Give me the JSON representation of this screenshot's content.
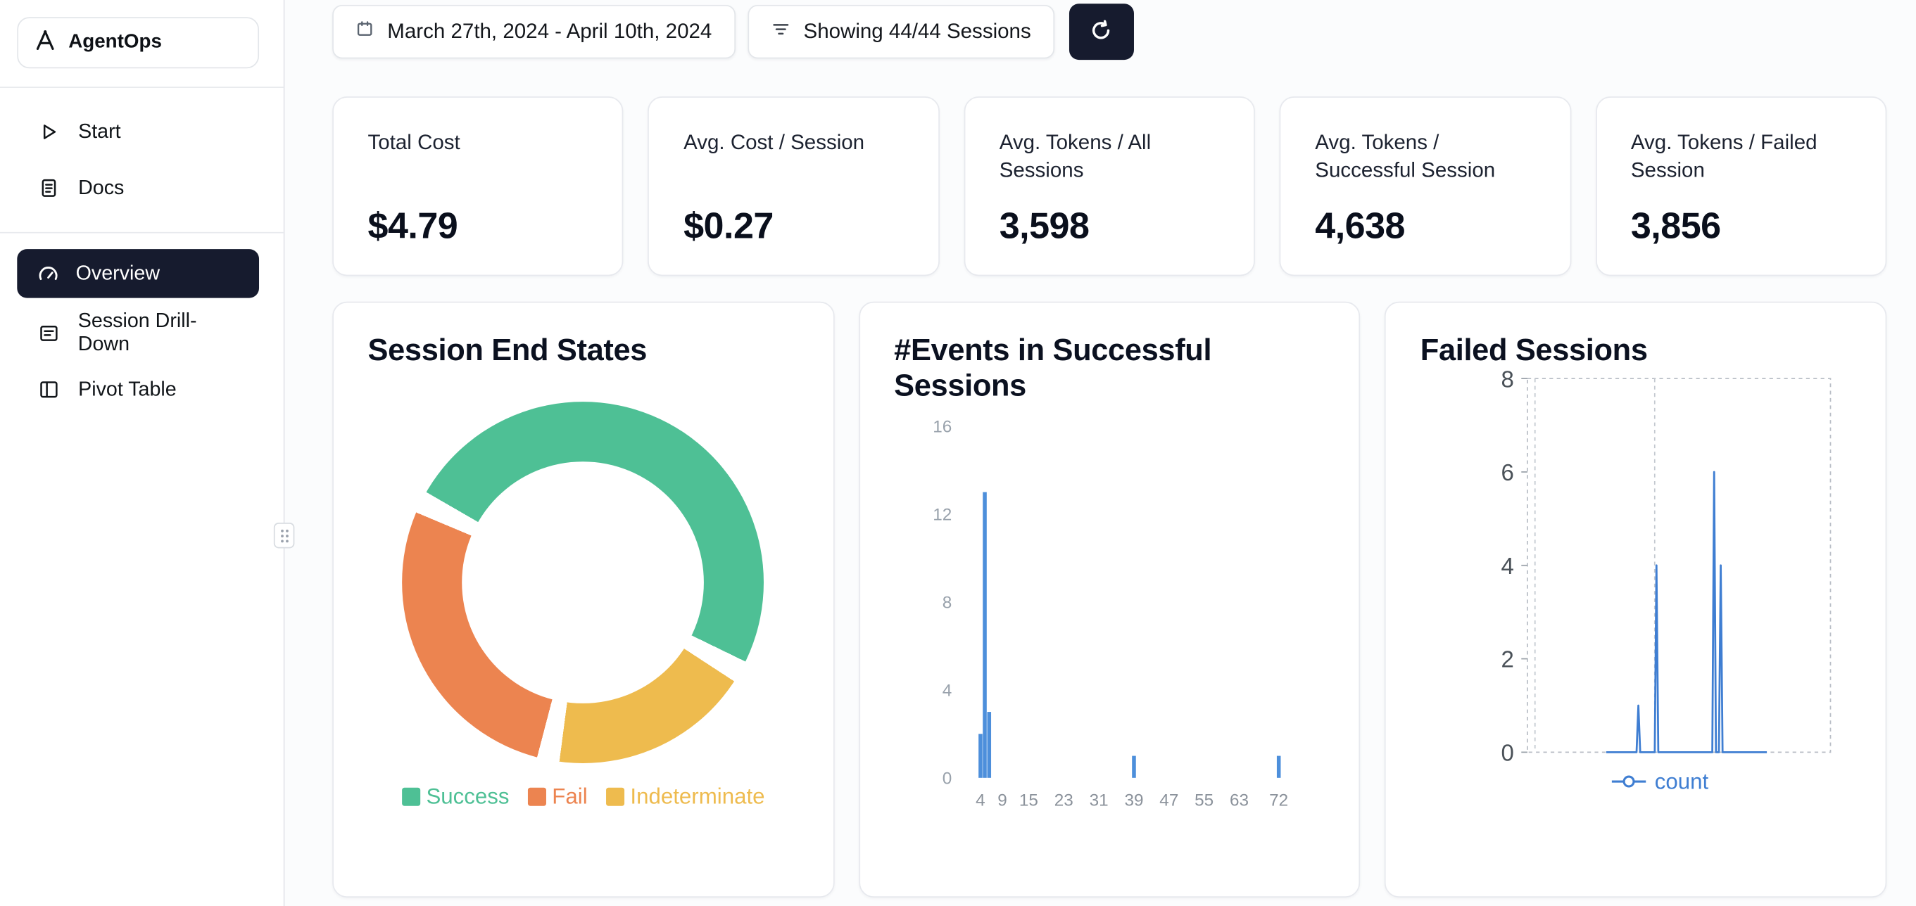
{
  "sidebar": {
    "logo_text": "AgentOps",
    "items": [
      {
        "label": "Start"
      },
      {
        "label": "Docs"
      },
      {
        "label": "Overview",
        "active": true
      },
      {
        "label": "Session Drill-Down"
      },
      {
        "label": "Pivot Table"
      }
    ]
  },
  "topbar": {
    "date_range_label": "March 27th, 2024 - April 10th, 2024",
    "filter_label": "Showing 44/44 Sessions"
  },
  "stats": [
    {
      "label": "Total Cost",
      "value": "$4.79"
    },
    {
      "label": "Avg. Cost / Session",
      "value": "$0.27"
    },
    {
      "label": "Avg. Tokens / All Sessions",
      "value": "3,598"
    },
    {
      "label": "Avg. Tokens / Successful Session",
      "value": "4,638"
    },
    {
      "label": "Avg. Tokens / Failed Session",
      "value": "3,856"
    }
  ],
  "colors": {
    "navy": "#161b2e",
    "success": "#4ec095",
    "fail": "#ec8450",
    "indeterminate": "#eebb4e",
    "bar_blue": "#4d8fdb",
    "line_blue": "#3f7ed2",
    "axis_gray": "#98a1ab",
    "axis_dark_gray": "#4a5158"
  },
  "chart_data": [
    {
      "type": "pie",
      "title": "Session End States",
      "labels": [
        "Success",
        "Fail",
        "Indeterminate"
      ],
      "values_pct": [
        52,
        29,
        19
      ],
      "colors": [
        "#4ec095",
        "#ec8450",
        "#eebb4e"
      ],
      "donut": true,
      "start_angle_deg": -60,
      "draw_order": [
        0,
        2,
        1
      ],
      "legend_position": "bottom"
    },
    {
      "type": "bar",
      "title": "#Events in Successful Sessions",
      "x": [
        4,
        5,
        6,
        39,
        72
      ],
      "values": [
        2,
        13,
        3,
        1,
        1
      ],
      "xticks": [
        4,
        9,
        15,
        23,
        31,
        39,
        47,
        55,
        63,
        72
      ],
      "yticks": [
        0,
        4,
        8,
        12,
        16
      ],
      "xlim": [
        0,
        78
      ],
      "ylim": [
        0,
        16
      ],
      "color": "#4d8fdb",
      "grid": false
    },
    {
      "type": "line",
      "title": "Failed Sessions",
      "yticks": [
        0,
        2,
        4,
        6,
        8
      ],
      "ylim": [
        0,
        8
      ],
      "grid": "dashed",
      "legend_position": "bottom",
      "series": [
        {
          "name": "count",
          "color": "#3f7ed2",
          "points": [
            [
              26,
              0
            ],
            [
              36,
              0
            ],
            [
              36.6,
              1
            ],
            [
              37.2,
              0
            ],
            [
              42,
              0
            ],
            [
              42.6,
              4
            ],
            [
              43.2,
              0
            ],
            [
              61,
              0
            ],
            [
              61.6,
              6
            ],
            [
              62.2,
              0
            ],
            [
              63.2,
              0
            ],
            [
              63.8,
              4
            ],
            [
              64.4,
              0
            ],
            [
              79,
              0
            ]
          ],
          "spikes": [
            {
              "y": 1
            },
            {
              "y": 4
            },
            {
              "y": 6
            },
            {
              "y": 4
            }
          ]
        }
      ]
    }
  ]
}
